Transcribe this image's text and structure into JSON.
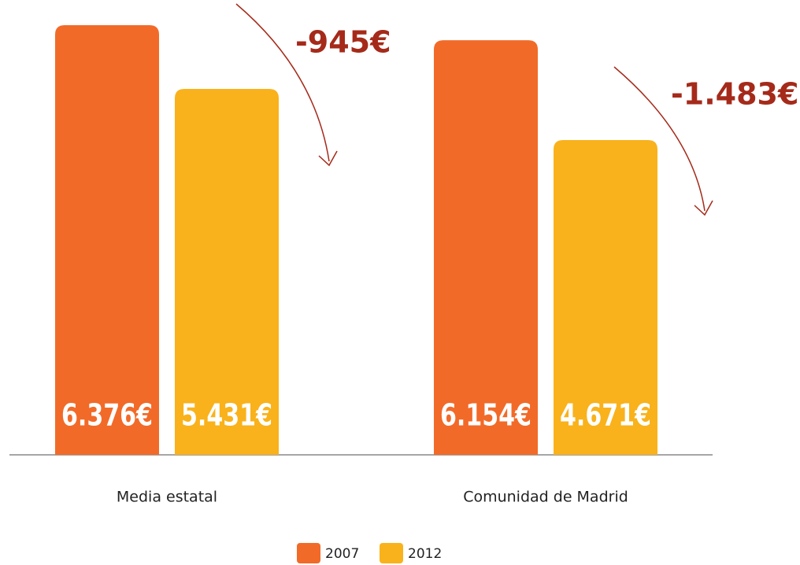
{
  "chart_data": {
    "type": "bar",
    "categories": [
      "Media estatal",
      "Comunidad de Madrid"
    ],
    "series": [
      {
        "name": "2007",
        "color": "#f26a28",
        "values": [
          6376,
          6154
        ],
        "value_labels": [
          "6.376€",
          "6.154€"
        ]
      },
      {
        "name": "2012",
        "color": "#f9b21b",
        "values": [
          5431,
          4671
        ],
        "value_labels": [
          "5.431€",
          "4.671€"
        ]
      }
    ],
    "annotations": [
      "-945€",
      "-1.483€"
    ],
    "ylim": [
      0,
      6400
    ],
    "annotation_color": "#a52a1a"
  }
}
